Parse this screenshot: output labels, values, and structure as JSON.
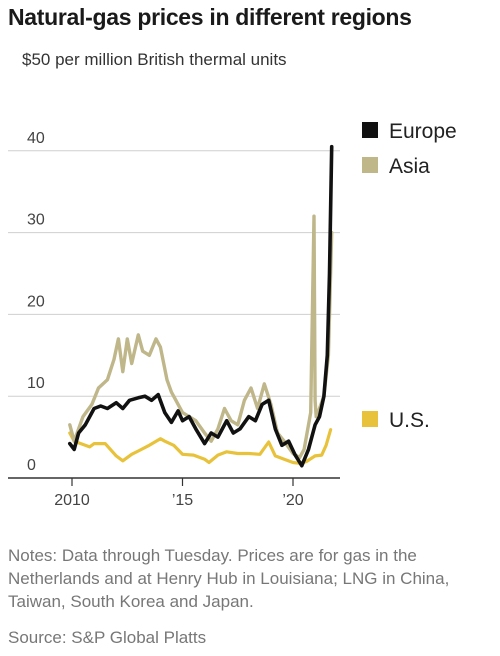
{
  "title": "Natural-gas prices in different regions",
  "subtitle": "$50 per million British thermal units",
  "notes": "Notes: Data through Tuesday. Prices are for gas in the Netherlands and at Henry Hub in Louisiana; LNG in China, Taiwan, South Korea and Japan.",
  "source": "Source: S&P Global Platts",
  "chart_data": {
    "type": "line",
    "ylim": [
      0,
      50
    ],
    "xlim": [
      2009.5,
      2021.75
    ],
    "yticks": [
      {
        "value": 0,
        "label": "0"
      },
      {
        "value": 10,
        "label": "10"
      },
      {
        "value": 20,
        "label": "20"
      },
      {
        "value": 30,
        "label": "30"
      },
      {
        "value": 40,
        "label": "40"
      }
    ],
    "xticks": [
      {
        "value": 2010,
        "label": "2010"
      },
      {
        "value": 2015,
        "label": "’15"
      },
      {
        "value": 2020,
        "label": "’20"
      }
    ],
    "legend_position": "right",
    "series": [
      {
        "name": "U.S.",
        "color": "#e8c23a",
        "x": [
          2009.9,
          2010.1,
          2010.4,
          2010.8,
          2011.0,
          2011.5,
          2012.0,
          2012.3,
          2012.7,
          2013.0,
          2013.5,
          2014.0,
          2014.2,
          2014.6,
          2015.0,
          2015.5,
          2016.0,
          2016.2,
          2016.6,
          2017.0,
          2017.5,
          2018.0,
          2018.5,
          2018.9,
          2019.2,
          2019.6,
          2020.0,
          2020.3,
          2020.6,
          2021.0,
          2021.3,
          2021.5,
          2021.7
        ],
        "values": [
          5.5,
          4.5,
          4.2,
          3.8,
          4.2,
          4.2,
          2.7,
          2.1,
          2.9,
          3.3,
          4.0,
          4.8,
          4.5,
          4.0,
          2.9,
          2.8,
          2.3,
          1.9,
          2.8,
          3.2,
          3.0,
          3.0,
          2.9,
          4.4,
          2.7,
          2.3,
          1.9,
          1.8,
          2.0,
          2.7,
          2.8,
          4.0,
          5.9
        ]
      },
      {
        "name": "Asia",
        "color": "#bfb68a",
        "x": [
          2009.9,
          2010.1,
          2010.5,
          2010.9,
          2011.2,
          2011.6,
          2011.9,
          2012.1,
          2012.3,
          2012.5,
          2012.7,
          2013.0,
          2013.2,
          2013.5,
          2013.8,
          2014.0,
          2014.3,
          2014.5,
          2014.7,
          2015.0,
          2015.3,
          2015.6,
          2016.0,
          2016.3,
          2016.6,
          2016.9,
          2017.2,
          2017.5,
          2017.8,
          2018.1,
          2018.4,
          2018.7,
          2019.0,
          2019.3,
          2019.6,
          2020.0,
          2020.3,
          2020.5,
          2020.8,
          2020.95,
          2021.0,
          2021.05,
          2021.2,
          2021.4,
          2021.6,
          2021.75
        ],
        "values": [
          6.5,
          4.5,
          7.5,
          9.0,
          11.0,
          12.0,
          14.5,
          17.0,
          13.0,
          17.0,
          14.0,
          17.5,
          15.5,
          15.0,
          17.0,
          16.0,
          12.0,
          10.5,
          9.5,
          8.0,
          7.5,
          7.0,
          5.5,
          4.5,
          6.0,
          8.5,
          7.0,
          6.5,
          9.5,
          11.0,
          8.5,
          11.5,
          9.0,
          5.5,
          4.5,
          3.0,
          2.5,
          3.5,
          8.0,
          32.0,
          9.5,
          7.5,
          8.5,
          10.0,
          15.0,
          30.0
        ]
      },
      {
        "name": "Europe",
        "color": "#111111",
        "x": [
          2009.9,
          2010.1,
          2010.3,
          2010.6,
          2011.0,
          2011.3,
          2011.6,
          2012.0,
          2012.3,
          2012.6,
          2013.0,
          2013.3,
          2013.6,
          2013.9,
          2014.2,
          2014.5,
          2014.8,
          2015.0,
          2015.3,
          2015.6,
          2016.0,
          2016.3,
          2016.6,
          2017.0,
          2017.3,
          2017.6,
          2018.0,
          2018.3,
          2018.6,
          2018.9,
          2019.2,
          2019.5,
          2019.8,
          2020.1,
          2020.4,
          2020.7,
          2021.0,
          2021.2,
          2021.4,
          2021.55,
          2021.65,
          2021.75
        ],
        "values": [
          4.2,
          3.5,
          5.5,
          6.5,
          8.5,
          8.8,
          8.5,
          9.2,
          8.5,
          9.5,
          9.8,
          10.0,
          9.5,
          10.2,
          8.0,
          6.8,
          8.2,
          7.0,
          7.5,
          6.0,
          4.2,
          5.5,
          5.0,
          7.0,
          5.5,
          6.0,
          7.5,
          7.0,
          9.0,
          9.5,
          6.0,
          4.0,
          4.5,
          2.8,
          1.5,
          3.5,
          6.5,
          7.5,
          10.0,
          15.0,
          25.0,
          40.5
        ]
      }
    ]
  }
}
